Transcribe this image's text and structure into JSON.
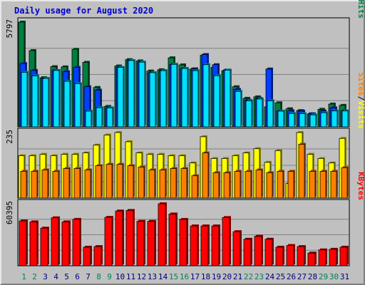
{
  "chart_data": {
    "type": "bar",
    "title": "Daily usage for August 2020",
    "categories": [
      "1",
      "2",
      "3",
      "4",
      "5",
      "6",
      "7",
      "8",
      "9",
      "10",
      "11",
      "12",
      "13",
      "14",
      "15",
      "16",
      "17",
      "18",
      "19",
      "20",
      "21",
      "22",
      "23",
      "24",
      "25",
      "26",
      "27",
      "28",
      "29",
      "30",
      "31"
    ],
    "weekend_days": [
      "1",
      "2",
      "8",
      "9",
      "15",
      "16",
      "22",
      "23",
      "29",
      "30"
    ],
    "panels": [
      {
        "max_label": "5797",
        "ylim": [
          0,
          5797
        ],
        "grid": true,
        "legend": [
          {
            "text": "Pages",
            "series": "Pages"
          },
          {
            "sep": "/"
          },
          {
            "text": "Files",
            "series": "Files"
          },
          {
            "sep": "/"
          },
          {
            "text": "Hits",
            "series": "Hits"
          }
        ],
        "series": [
          {
            "name": "Hits",
            "color": "#008040",
            "values": [
              5797,
              4220,
              2720,
              3330,
              3320,
              4290,
              3570,
              2180,
              1130,
              3370,
              3720,
              3650,
              3090,
              3160,
              3820,
              3430,
              3190,
              3960,
              3290,
              3100,
              2220,
              1580,
              1660,
              1110,
              1330,
              1000,
              900,
              720,
              970,
              1260,
              1190
            ]
          },
          {
            "name": "Files",
            "color": "#0040ff",
            "values": [
              3500,
              3120,
              2680,
              3120,
              3050,
              3290,
              2220,
              2030,
              1050,
              3290,
              3670,
              3580,
              3000,
              3110,
              3460,
              3230,
              3210,
              4000,
              3440,
              3140,
              2070,
              1480,
              1580,
              3200,
              870,
              890,
              870,
              720,
              880,
              1050,
              880
            ]
          },
          {
            "name": "Pages",
            "color": "#00e0ff",
            "values": [
              3020,
              2820,
              2680,
              3120,
              2520,
              2390,
              870,
              1060,
              1050,
              3290,
              3670,
              3580,
              3000,
              3110,
              3460,
              3230,
              3110,
              3440,
              2830,
              3140,
              1960,
              1440,
              1540,
              1440,
              870,
              740,
              730,
              660,
              780,
              880,
              880
            ]
          }
        ]
      },
      {
        "max_label": "235",
        "ylim": [
          0,
          235
        ],
        "grid": true,
        "legend": [
          {
            "text": "Sites",
            "series": "Sites"
          },
          {
            "sep": "/"
          },
          {
            "text": "Visits",
            "series": "Visits"
          }
        ],
        "series": [
          {
            "name": "Visits",
            "color": "#ffff00",
            "values": [
              152,
              152,
              157,
              152,
              157,
              157,
              162,
              190,
              226,
              235,
              202,
              162,
              157,
              157,
              152,
              152,
              126,
              220,
              142,
              142,
              152,
              162,
              177,
              128,
              170,
              52,
              235,
              157,
              142,
              126,
              214
            ]
          },
          {
            "name": "Sites",
            "color": "#ff8000",
            "values": [
              96,
              96,
              101,
              96,
              106,
              106,
              101,
              116,
              121,
              121,
              116,
              111,
              101,
              101,
              106,
              106,
              80,
              162,
              91,
              91,
              96,
              96,
              101,
              91,
              96,
              96,
              193,
              96,
              96,
              96,
              109
            ]
          }
        ]
      },
      {
        "max_label": "60395",
        "ylim": [
          0,
          60395
        ],
        "grid": true,
        "legend": [
          {
            "text": "KBytes",
            "series": "KBytes"
          }
        ],
        "series": [
          {
            "name": "KBytes",
            "color": "#ff0000",
            "values": [
              43680,
              42800,
              36670,
              46730,
              42780,
              45200,
              18120,
              18690,
              47160,
              53360,
              53920,
              43320,
              43320,
              60395,
              50440,
              45150,
              38820,
              38820,
              38820,
              47000,
              33230,
              25870,
              28780,
              25870,
              18120,
              19760,
              18690,
              12380,
              15450,
              16070,
              18120
            ]
          }
        ]
      }
    ],
    "x_label_colors": {
      "weekday": "#000080",
      "weekend": "#00805a"
    }
  }
}
